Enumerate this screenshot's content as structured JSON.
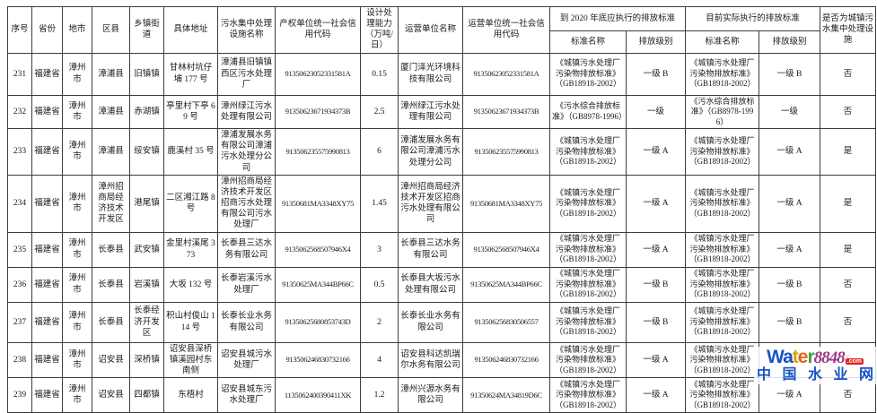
{
  "table": {
    "headers": {
      "seq": "序号",
      "province": "省份",
      "city": "地市",
      "district": "区县",
      "town": "乡镇街道",
      "address": "具体地址",
      "facility": "污水集中处理设施名称",
      "owner_code": "产权单位统一社会信用代码",
      "capacity": "设计处理能力（万吨/日）",
      "operator": "运营单位名称",
      "operator_code": "运营单位统一社会信用代码",
      "std2020_group": "到 2020 年底应执行的排放标准",
      "current_group": "目前实际执行的排放标准",
      "std_name": "标准名称",
      "std_level": "排放级别",
      "is_urban": "是否为城镇污水集中处理设施"
    },
    "rows": [
      {
        "seq": "231",
        "province": "福建省",
        "city": "漳州市",
        "district": "漳浦县",
        "town": "旧镇镇",
        "address": "甘林村坑仔埔 177 号",
        "facility": "漳浦县旧镇镇西区污水处理厂",
        "owner_code": "91350623052331581A",
        "capacity": "0.15",
        "operator": "厦门泽光环境科技有限公司",
        "operator_code": "91350623052331581A",
        "std2020_name": "《城镇污水处理厂污染物排放标准》（GB18918-2002）",
        "std2020_level": "一级 B",
        "current_name": "《城镇污水处理厂污染物排放标准》（GB18918-2002）",
        "current_level": "一级 B",
        "is_urban": "否"
      },
      {
        "seq": "232",
        "province": "福建省",
        "city": "漳州市",
        "district": "漳浦县",
        "town": "赤湖镇",
        "address": "亭里村下亭 69 号",
        "facility": "漳州绿江污水处理有限公司",
        "owner_code": "91350623671934373B",
        "capacity": "2.5",
        "operator": "漳州绿江污水处理有限公司",
        "operator_code": "91350623671934373B",
        "std2020_name": "《污水综合排放标准》（GB8978-1996）",
        "std2020_level": "一级",
        "current_name": "《污水综合排放标准》（GB8978-1996）",
        "current_level": "一级",
        "is_urban": "否"
      },
      {
        "seq": "233",
        "province": "福建省",
        "city": "漳州市",
        "district": "漳浦县",
        "town": "绥安镇",
        "address": "鹿溪村 35 号",
        "facility": "漳浦发展水务有限公司漳浦污水处理分公司",
        "owner_code": "913506235575990813",
        "capacity": "6",
        "operator": "漳浦发展水务有限公司漳浦污水处理分公司",
        "operator_code": "913506235575990813",
        "std2020_name": "《城镇污水处理厂污染物排放标准》（GB18918-2002）",
        "std2020_level": "一级 A",
        "current_name": "《城镇污水处理厂污染物排放标准》（GB18918-2002）",
        "current_level": "一级 A",
        "is_urban": "是"
      },
      {
        "seq": "234",
        "province": "福建省",
        "city": "漳州市",
        "district": "漳州招商局经济技术开发区",
        "town": "港尾镇",
        "address": "二区湘江路 8 号",
        "facility": "漳州招商局经济技术开发区招商污水处理有限公司污水处理厂",
        "owner_code": "91350681MA3348XY75",
        "capacity": "1.45",
        "operator": "漳州招商局经济技术开发区招商污水处理有限公司",
        "operator_code": "91350681MA3348XY75",
        "std2020_name": "《城镇污水处理厂污染物排放标准》（GB18918-2002）",
        "std2020_level": "一级 A",
        "current_name": "《城镇污水处理厂污染物排放标准》（GB18918-2002）",
        "current_level": "一级 A",
        "is_urban": "是"
      },
      {
        "seq": "235",
        "province": "福建省",
        "city": "漳州市",
        "district": "长泰县",
        "town": "武安镇",
        "address": "金里村溪尾 373",
        "facility": "长泰县三达水务有限公司",
        "owner_code": "9135062568507946X4",
        "capacity": "3",
        "operator": "长泰县三达水务有限公司",
        "operator_code": "9135062568507946X4",
        "std2020_name": "《城镇污水处理厂污染物排放标准》（GB18918-2002）",
        "std2020_level": "一级 A",
        "current_name": "《城镇污水处理厂污染物排放标准》（GB18918-2002）",
        "current_level": "一级 A",
        "is_urban": "是"
      },
      {
        "seq": "236",
        "province": "福建省",
        "city": "漳州市",
        "district": "长泰县",
        "town": "岩溪镇",
        "address": "大坂 132 号",
        "facility": "长泰岩溪污水处理厂",
        "owner_code": "91350625MA344BP66C",
        "capacity": "0.5",
        "operator": "长泰县大坂污水处理有限公司",
        "operator_code": "91350625MA344BP66C",
        "std2020_name": "《城镇污水处理厂污染物排放标准》（GB18918-2002）",
        "std2020_level": "一级 B",
        "current_name": "《城镇污水处理厂污染物排放标准》（GB18918-2002）",
        "current_level": "一级 B",
        "is_urban": "否"
      },
      {
        "seq": "237",
        "province": "福建省",
        "city": "漳州市",
        "district": "长泰县",
        "town": "长泰经济开发区",
        "address": "积山村俊山 114 号",
        "facility": "长泰长业水务有限公司",
        "owner_code": "91350625680853743D",
        "capacity": "2",
        "operator": "长泰长业水务有限公司",
        "operator_code": "913506256830506557",
        "std2020_name": "《城镇污水处理厂污染物排放标准》（GB18918-2002）",
        "std2020_level": "一级 B",
        "current_name": "《城镇污水处理厂污染物排放标准》（GB18918-2002）",
        "current_level": "一级 B",
        "is_urban": "否"
      },
      {
        "seq": "238",
        "province": "福建省",
        "city": "漳州市",
        "district": "诏安县",
        "town": "深桥镇",
        "address": "诏安县深桥镇溪园村东南侧",
        "facility": "诏安县城污水处理厂",
        "owner_code": "913506246830732166",
        "capacity": "4",
        "operator": "诏安县科达凯瑞尔水务有限公司",
        "operator_code": "913506246830732166",
        "std2020_name": "《城镇污水处理厂污染物排放标准》（GB18918-2002）",
        "std2020_level": "一级 A",
        "current_name": "《城镇污水处理厂污染物排放标准》（GB18918-2002）",
        "current_level": "一级 A",
        "is_urban": "否"
      },
      {
        "seq": "239",
        "province": "福建省",
        "city": "漳州市",
        "district": "诏安县",
        "town": "四都镇",
        "address": "东梧村",
        "facility": "诏安县城东污水处理厂",
        "owner_code": "1135062400390411XK",
        "capacity": "1.2",
        "operator": "漳州兴源水务有限公司",
        "operator_code": "91350624MA34819D6C",
        "std2020_name": "《城镇污水处理厂污染物排放标准》（GB18918-2002）",
        "std2020_level": "一级 A",
        "current_name": "《城镇污水处理厂污染物排放标准》（GB18918-2002）",
        "current_level": "一级 A",
        "is_urban": "否"
      }
    ]
  },
  "watermark": {
    "letters": [
      {
        "ch": "W",
        "style": "color:#1753c6"
      },
      {
        "ch": "a",
        "style": "color:#1753c6"
      },
      {
        "ch": "t",
        "style": "color:#d9a400"
      },
      {
        "ch": "e",
        "style": "color:#e86010"
      },
      {
        "ch": "r",
        "style": "color:#3f9e3f"
      }
    ],
    "number": "8848",
    "suffix": ".com",
    "site_name": "中国水业网",
    "colors": {
      "blue": "#1753c6",
      "number_purple": "#9c3a84",
      "suffix_red": "#e02020"
    }
  }
}
